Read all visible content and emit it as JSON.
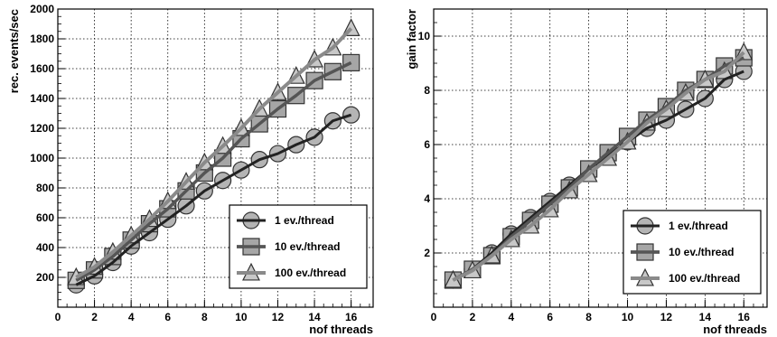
{
  "chart_data": [
    {
      "type": "line",
      "title": "",
      "xlabel": "nof threads",
      "ylabel": "rec. events/sec",
      "xlim": [
        0,
        17.2
      ],
      "ylim": [
        0,
        2000
      ],
      "xticks": [
        0,
        2,
        4,
        6,
        8,
        10,
        12,
        14,
        16
      ],
      "yticks": [
        200,
        400,
        600,
        800,
        1000,
        1200,
        1400,
        1600,
        1800,
        2000
      ],
      "grid": true,
      "legend_position": "bottom-right",
      "x": [
        1,
        2,
        3,
        4,
        5,
        6,
        7,
        8,
        9,
        10,
        11,
        12,
        13,
        14,
        15,
        16
      ],
      "series": [
        {
          "name": "1 ev./thread",
          "marker": "circle",
          "values": [
            150,
            210,
            300,
            410,
            500,
            590,
            680,
            780,
            850,
            920,
            990,
            1030,
            1090,
            1140,
            1250,
            1290
          ]
        },
        {
          "name": "10 ev./thread",
          "marker": "square",
          "values": [
            180,
            250,
            340,
            450,
            560,
            660,
            780,
            900,
            1000,
            1130,
            1230,
            1330,
            1420,
            1520,
            1580,
            1640
          ]
        },
        {
          "name": "100 ev./thread",
          "marker": "triangle",
          "values": [
            200,
            270,
            370,
            480,
            590,
            710,
            840,
            970,
            1080,
            1200,
            1330,
            1440,
            1550,
            1660,
            1740,
            1870
          ]
        }
      ]
    },
    {
      "type": "line",
      "title": "",
      "xlabel": "nof threads",
      "ylabel": "gain factor",
      "xlim": [
        0,
        17.2
      ],
      "ylim": [
        0,
        11
      ],
      "xticks": [
        0,
        2,
        4,
        6,
        8,
        10,
        12,
        14,
        16
      ],
      "yticks": [
        2,
        4,
        6,
        8,
        10
      ],
      "grid": true,
      "legend_position": "bottom-right",
      "x": [
        1,
        2,
        3,
        4,
        5,
        6,
        7,
        8,
        9,
        10,
        11,
        12,
        13,
        14,
        15,
        16
      ],
      "series": [
        {
          "name": "1 ev./thread",
          "marker": "circle",
          "values": [
            1.0,
            1.4,
            2.0,
            2.7,
            3.3,
            3.9,
            4.5,
            5.1,
            5.6,
            6.1,
            6.6,
            6.9,
            7.3,
            7.7,
            8.4,
            8.7
          ]
        },
        {
          "name": "10 ev./thread",
          "marker": "square",
          "values": [
            1.0,
            1.4,
            1.9,
            2.6,
            3.2,
            3.8,
            4.4,
            5.1,
            5.7,
            6.3,
            6.9,
            7.4,
            8.0,
            8.4,
            8.9,
            9.2
          ]
        },
        {
          "name": "100 ev./thread",
          "marker": "triangle",
          "values": [
            1.0,
            1.35,
            1.9,
            2.5,
            3.0,
            3.6,
            4.3,
            4.9,
            5.5,
            6.1,
            6.8,
            7.3,
            7.9,
            8.4,
            8.7,
            9.4
          ]
        }
      ]
    }
  ]
}
